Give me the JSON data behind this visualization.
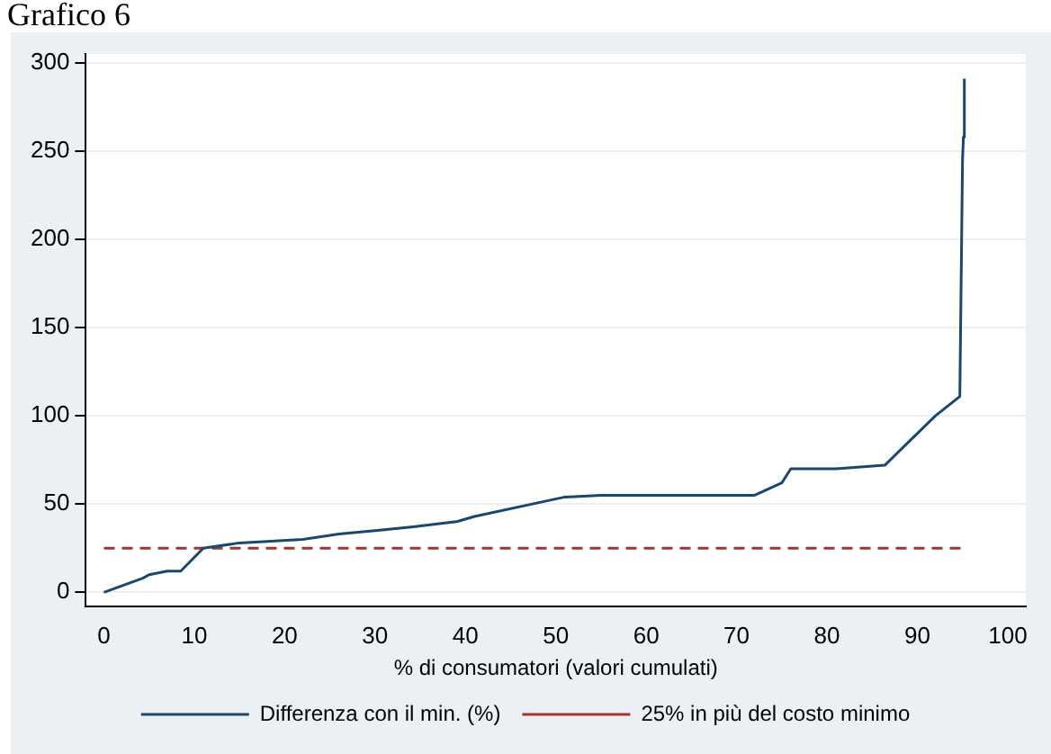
{
  "chart_data": {
    "type": "line",
    "title": "Grafico 6",
    "xlabel": "% di consumatori (valori cumulati)",
    "xlim": [
      -2,
      102
    ],
    "xticks": [
      0,
      10,
      20,
      30,
      40,
      50,
      60,
      70,
      80,
      90,
      100
    ],
    "ylim": [
      -8,
      305
    ],
    "yticks": [
      0,
      50,
      100,
      150,
      200,
      250,
      300
    ],
    "grid": "y",
    "legend": "bottom",
    "series": [
      {
        "name": "Differenza con il min. (%)",
        "color": "#1a476f",
        "line_style": "solid",
        "x": [
          0,
          4.3,
          5,
          7,
          8.5,
          11,
          15,
          22,
          26,
          30,
          34,
          39,
          41,
          51,
          55,
          72,
          75,
          76,
          81,
          86.4,
          92,
          94.7,
          95,
          95.1,
          95.2
        ],
        "values": [
          0,
          8,
          10,
          12,
          12,
          25,
          28,
          30,
          33,
          35,
          37,
          40,
          43,
          54,
          55,
          55,
          62,
          70,
          70,
          72,
          100,
          111,
          245,
          258,
          291
        ]
      },
      {
        "name": "25% in più del costo minimo",
        "color": "#a83232",
        "line_style": "dashed",
        "x": [
          0,
          95
        ],
        "values": [
          25,
          25
        ]
      }
    ]
  }
}
